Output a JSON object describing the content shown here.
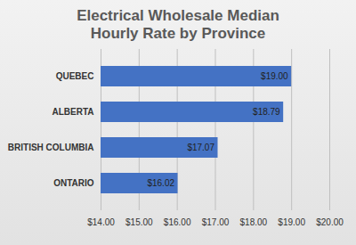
{
  "chart_data": {
    "type": "bar",
    "title": "Electrical Wholesale Median Hourly Rate by Province",
    "orientation": "horizontal",
    "categories": [
      "QUEBEC",
      "ALBERTA",
      "BRITISH COLUMBIA",
      "ONTARIO"
    ],
    "values": [
      19.0,
      18.79,
      17.07,
      16.02
    ],
    "value_labels": [
      "$19.00",
      "$18.79",
      "$17.07",
      "$16.02"
    ],
    "data_labels": true,
    "color": "#4472c4",
    "xlim": [
      14,
      20
    ],
    "xticks": [
      {
        "value": 14,
        "label": "$14.00"
      },
      {
        "value": 15,
        "label": "$15.00"
      },
      {
        "value": 16,
        "label": "$16.00"
      },
      {
        "value": 17,
        "label": "$17.00"
      },
      {
        "value": 18,
        "label": "$18.00"
      },
      {
        "value": 19,
        "label": "$19.00"
      },
      {
        "value": 20,
        "label": "$20.00"
      }
    ],
    "grid": true
  }
}
